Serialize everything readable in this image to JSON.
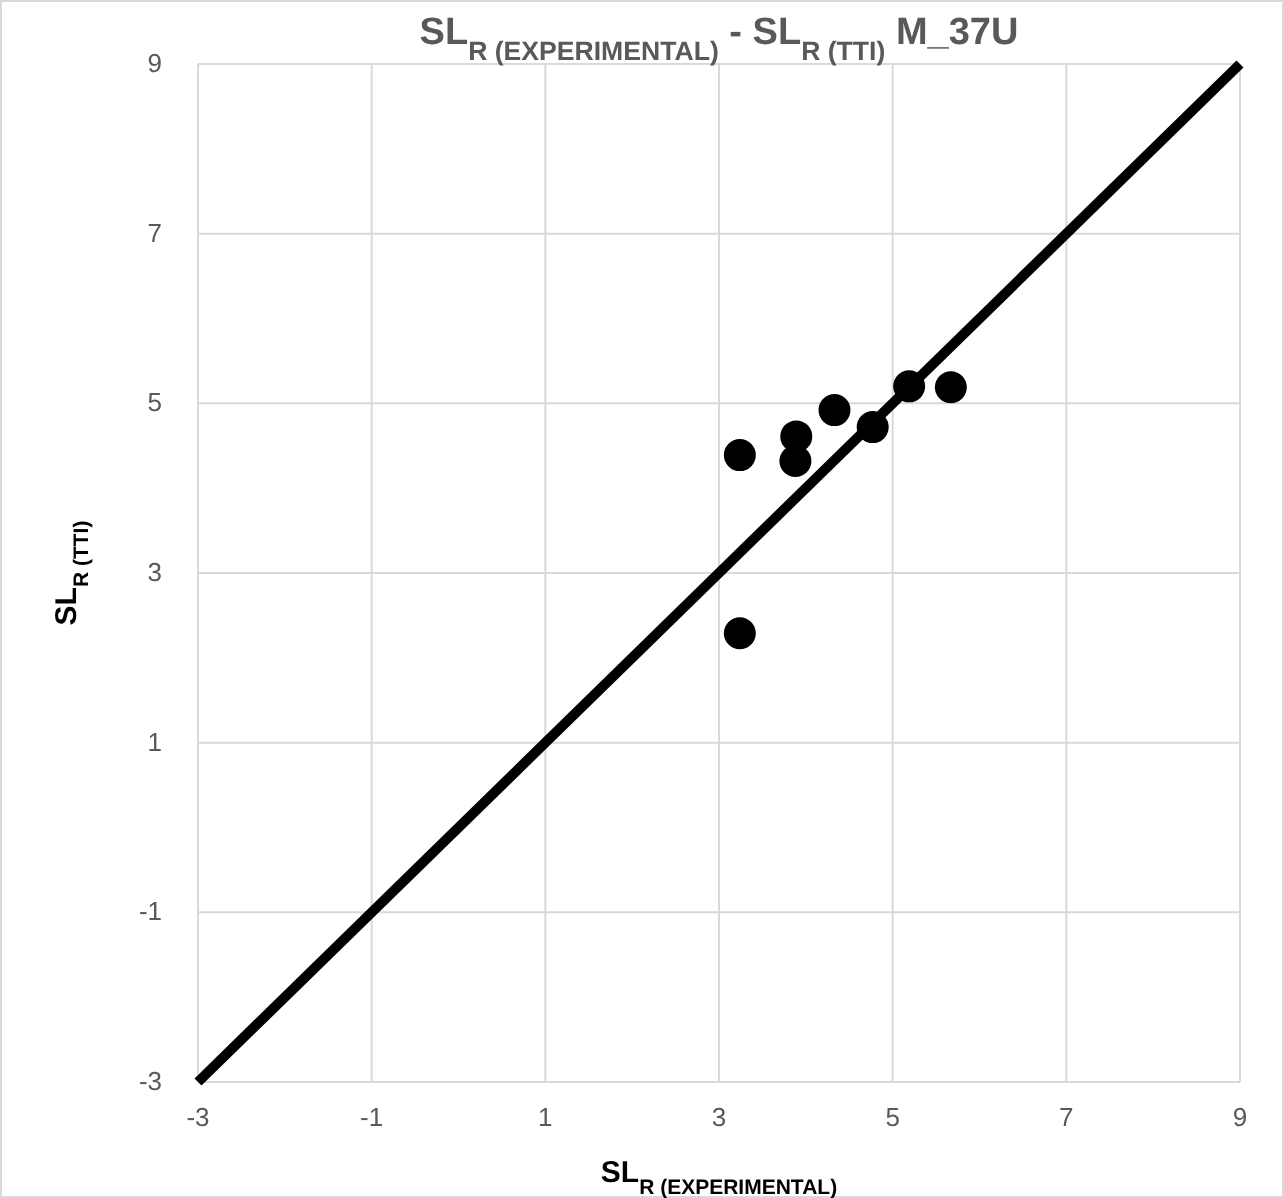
{
  "chart_data": {
    "type": "scatter",
    "title": "SL$_{R (EXPERIMENTAL)}$ - SL$_{R (TTI)}$ M_37U",
    "xlabel": "SL$_{R (EXPERIMENTAL)}$",
    "ylabel": "SL$_{R (TTI)}$",
    "xlim": [
      -3,
      9
    ],
    "ylim": [
      -3,
      9
    ],
    "xticks": [
      -3,
      -1,
      1,
      3,
      5,
      7,
      9
    ],
    "yticks": [
      -3,
      -1,
      1,
      3,
      5,
      7,
      9
    ],
    "grid": true,
    "series": [
      {
        "marker": "circle",
        "color": "#000000",
        "x": [
          3.24,
          3.24,
          3.89,
          3.88,
          4.33,
          4.77,
          5.19,
          5.67
        ],
        "values": [
          4.39,
          2.29,
          4.61,
          4.32,
          4.92,
          4.72,
          5.2,
          5.19
        ]
      },
      {
        "type": "line",
        "color": "#000000",
        "x": [
          -3,
          9
        ],
        "values": [
          -3,
          9
        ]
      }
    ]
  }
}
